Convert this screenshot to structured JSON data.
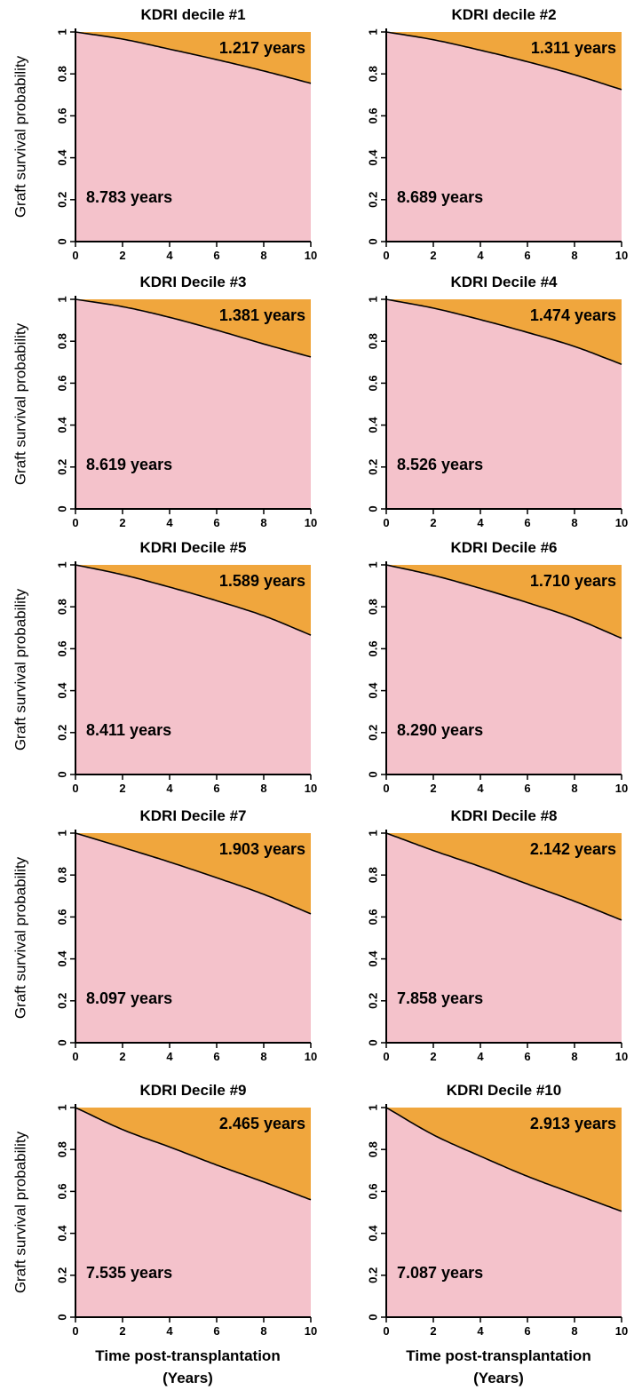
{
  "chart_data": {
    "type": "area",
    "ylabel": "Graft survival probability",
    "xlabel": [
      "Time post-transplantation",
      "(Years)"
    ],
    "xlim": [
      0,
      10
    ],
    "ylim": [
      0,
      1
    ],
    "x_ticks": [
      0,
      2,
      4,
      6,
      8,
      10
    ],
    "x_tick_labels": [
      "0",
      "2",
      "4",
      "6",
      "8",
      "10"
    ],
    "y_ticks": [
      0,
      0.2,
      0.4,
      0.6,
      0.8,
      1
    ],
    "y_tick_labels": [
      "0",
      "0.2",
      "0.4",
      "0.6",
      "0.8",
      "1"
    ],
    "colors": {
      "below_curve": "#f4c2cb",
      "above_curve": "#f0a63d",
      "curve": "#000000"
    },
    "panels": [
      {
        "title": "KDRI decile #1",
        "area_above_curve": "1.217 years",
        "area_below_curve": "8.783 years",
        "x": [
          0,
          2,
          4,
          6,
          8,
          10
        ],
        "y": [
          1.0,
          0.966,
          0.918,
          0.868,
          0.814,
          0.755
        ]
      },
      {
        "title": "KDRI decile #2",
        "area_above_curve": "1.311 years",
        "area_below_curve": "8.689 years",
        "x": [
          0,
          2,
          4,
          6,
          8,
          10
        ],
        "y": [
          1.0,
          0.963,
          0.913,
          0.858,
          0.796,
          0.725
        ]
      },
      {
        "title": "KDRI Decile #3",
        "area_above_curve": "1.381 years",
        "area_below_curve": "8.619 years",
        "x": [
          0,
          2,
          4,
          6,
          8,
          10
        ],
        "y": [
          1.0,
          0.965,
          0.914,
          0.853,
          0.787,
          0.725
        ]
      },
      {
        "title": "KDRI Decile #4",
        "area_above_curve": "1.474 years",
        "area_below_curve": "8.526 years",
        "x": [
          0,
          2,
          4,
          6,
          8,
          10
        ],
        "y": [
          1.0,
          0.958,
          0.903,
          0.842,
          0.775,
          0.69
        ]
      },
      {
        "title": "KDRI Decile #5",
        "area_above_curve": "1.589 years",
        "area_below_curve": "8.411 years",
        "x": [
          0,
          2,
          4,
          6,
          8,
          10
        ],
        "y": [
          1.0,
          0.953,
          0.894,
          0.829,
          0.757,
          0.665
        ]
      },
      {
        "title": "KDRI Decile #6",
        "area_above_curve": "1.710 years",
        "area_below_curve": "8.290 years",
        "x": [
          0,
          2,
          4,
          6,
          8,
          10
        ],
        "y": [
          1.0,
          0.95,
          0.888,
          0.82,
          0.745,
          0.65
        ]
      },
      {
        "title": "KDRI Decile #7",
        "area_above_curve": "1.903 years",
        "area_below_curve": "8.097 years",
        "x": [
          0,
          2,
          4,
          6,
          8,
          10
        ],
        "y": [
          1.0,
          0.932,
          0.862,
          0.787,
          0.708,
          0.615
        ]
      },
      {
        "title": "KDRI Decile #8",
        "area_above_curve": "2.142 years",
        "area_below_curve": "7.858 years",
        "x": [
          0,
          2,
          4,
          6,
          8,
          10
        ],
        "y": [
          1.0,
          0.917,
          0.84,
          0.757,
          0.675,
          0.585
        ]
      },
      {
        "title": "KDRI Decile #9",
        "area_above_curve": "2.465 years",
        "area_below_curve": "7.535 years",
        "x": [
          0,
          2,
          4,
          6,
          8,
          10
        ],
        "y": [
          1.0,
          0.895,
          0.812,
          0.726,
          0.645,
          0.56
        ]
      },
      {
        "title": "KDRI Decile #10",
        "area_above_curve": "2.913 years",
        "area_below_curve": "7.087 years",
        "x": [
          0,
          2,
          4,
          6,
          8,
          10
        ],
        "y": [
          1.0,
          0.87,
          0.768,
          0.672,
          0.588,
          0.505
        ]
      }
    ]
  }
}
